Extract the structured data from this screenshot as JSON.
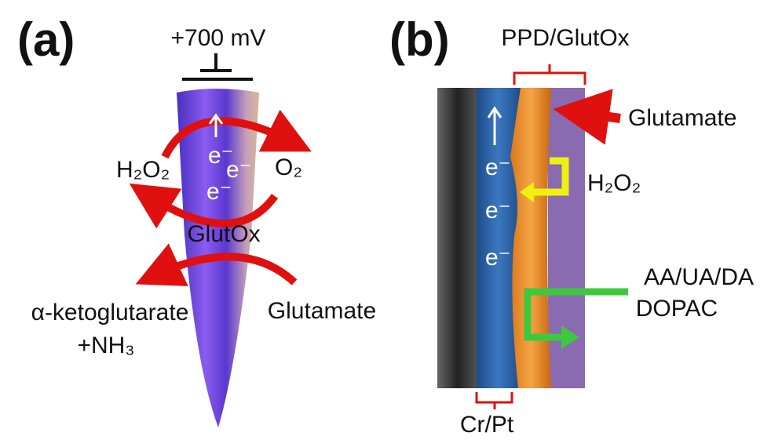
{
  "panel_a": {
    "label": "(a)",
    "voltage": "+700 mV",
    "electrons": [
      "e⁻",
      "e⁻",
      "e⁻"
    ],
    "h2o2": "H₂O₂",
    "o2": "O₂",
    "enzyme": "GlutOx",
    "product": "α-ketoglutarate",
    "product_2": "+NH₃",
    "substrate": "Glutamate"
  },
  "panel_b": {
    "label": "(b)",
    "layer_label": "PPD/GlutOx",
    "substrate": "Glutamate",
    "h2o2": "H₂O₂",
    "interferents": "AA/UA/DA",
    "interferents_2": "DOPAC",
    "electrons": [
      "e⁻",
      "e⁻",
      "e⁻"
    ],
    "base_label": "Cr/Pt"
  }
}
